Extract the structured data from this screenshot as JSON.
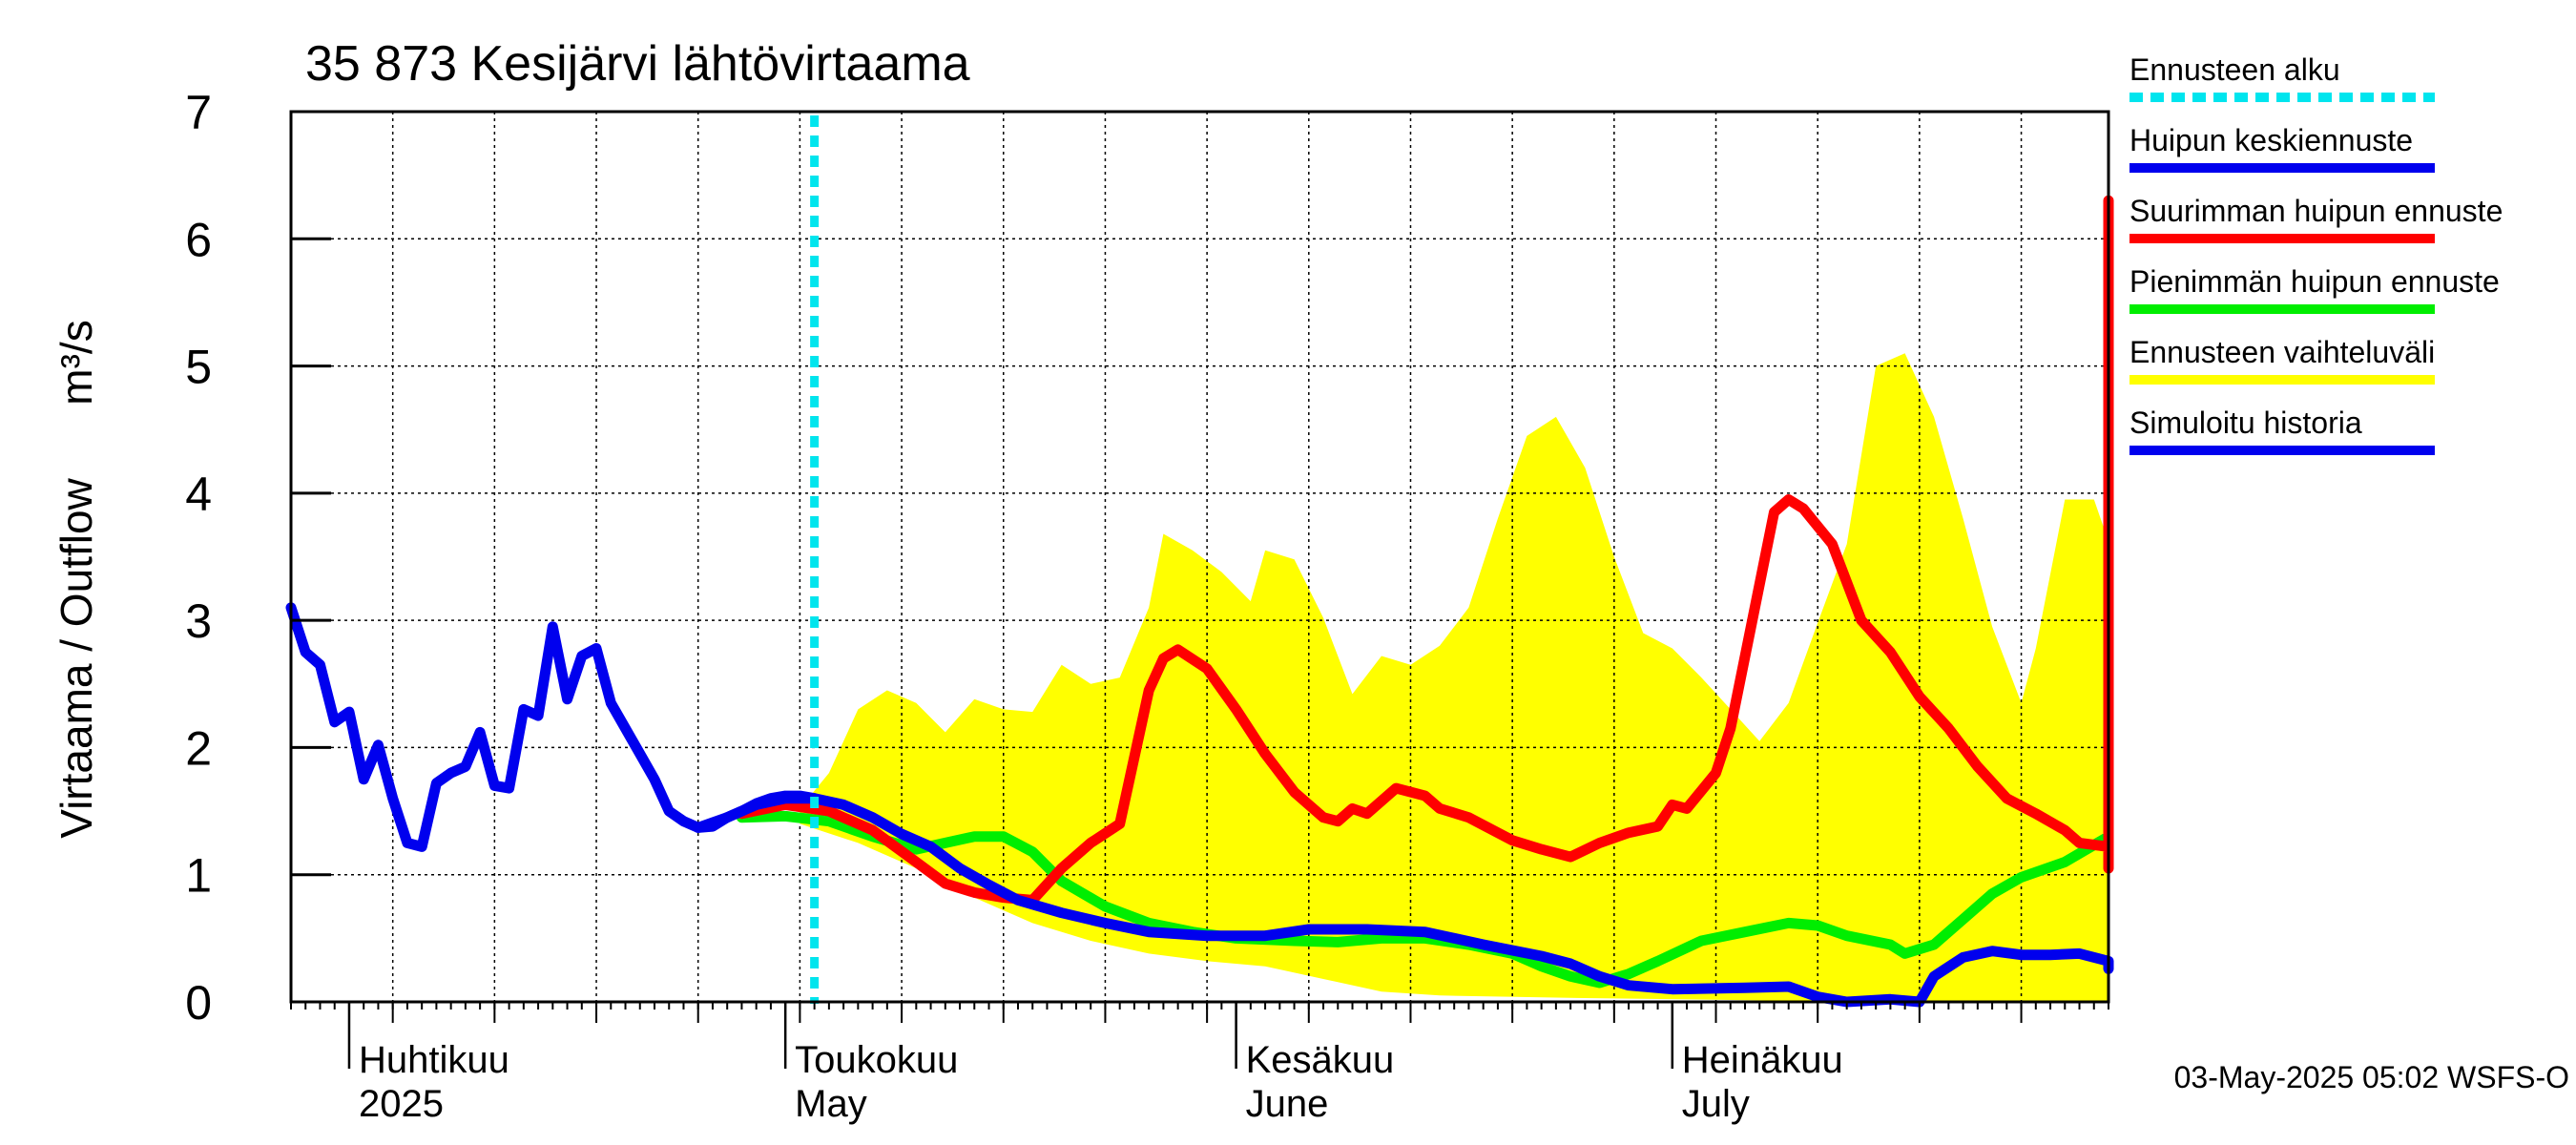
{
  "chart_data": {
    "type": "line",
    "title": "35 873 Kesijärvi lähtövirtaama",
    "ylabel_fi": "Virtaama / Outflow",
    "ylabel_unit": "m³/s",
    "ylim": [
      0,
      7
    ],
    "yticks": [
      "0",
      "1",
      "2",
      "3",
      "4",
      "5",
      "6",
      "7"
    ],
    "xlim": [
      "2025-03-28",
      "2025-07-31"
    ],
    "month_labels": [
      {
        "fi": "Huhtikuu",
        "en": "2025",
        "date": "2025-04-01"
      },
      {
        "fi": "Toukokuu",
        "en": "May",
        "date": "2025-05-01"
      },
      {
        "fi": "Kesäkuu",
        "en": "June",
        "date": "2025-06-01"
      },
      {
        "fi": "Heinäkuu",
        "en": "July",
        "date": "2025-07-01"
      }
    ],
    "forecast_start": "2025-05-03",
    "grid": true,
    "legend_position": "right",
    "legend": [
      {
        "label": "Ennusteen alku",
        "color": "#00e5ee",
        "dashed": true
      },
      {
        "label": "Huipun keskiennuste",
        "color": "#0000ee"
      },
      {
        "label": "Suurimman huipun ennuste",
        "color": "#ff0000"
      },
      {
        "label": "Pienimmän huipun ennuste",
        "color": "#00ee00"
      },
      {
        "label": "Ennusteen vaihteluväli",
        "color": "#ffff00"
      },
      {
        "label": "Simuloitu historia",
        "color": "#0000ee"
      }
    ],
    "footer": "03-May-2025 05:02 WSFS-O",
    "series": [
      {
        "name": "Simuloitu historia",
        "color": "#0000ee",
        "points": [
          [
            "2025-03-28",
            3.1
          ],
          [
            "2025-03-29",
            2.75
          ],
          [
            "2025-03-30",
            2.65
          ],
          [
            "2025-03-31",
            2.2
          ],
          [
            "2025-04-01",
            2.28
          ],
          [
            "2025-04-02",
            1.75
          ],
          [
            "2025-04-03",
            2.02
          ],
          [
            "2025-04-04",
            1.6
          ],
          [
            "2025-04-05",
            1.25
          ],
          [
            "2025-04-06",
            1.22
          ],
          [
            "2025-04-07",
            1.72
          ],
          [
            "2025-04-08",
            1.8
          ],
          [
            "2025-04-09",
            1.85
          ],
          [
            "2025-04-10",
            2.12
          ],
          [
            "2025-04-11",
            1.7
          ],
          [
            "2025-04-12",
            1.68
          ],
          [
            "2025-04-13",
            2.3
          ],
          [
            "2025-04-14",
            2.25
          ],
          [
            "2025-04-15",
            2.95
          ],
          [
            "2025-04-16",
            2.38
          ],
          [
            "2025-04-17",
            2.72
          ],
          [
            "2025-04-18",
            2.78
          ],
          [
            "2025-04-19",
            2.35
          ],
          [
            "2025-04-20",
            2.15
          ],
          [
            "2025-04-21",
            1.95
          ],
          [
            "2025-04-22",
            1.75
          ],
          [
            "2025-04-23",
            1.5
          ],
          [
            "2025-04-24",
            1.42
          ],
          [
            "2025-04-25",
            1.37
          ],
          [
            "2025-04-26",
            1.38
          ],
          [
            "2025-04-27",
            1.45
          ],
          [
            "2025-04-28",
            1.5
          ],
          [
            "2025-04-29",
            1.56
          ],
          [
            "2025-04-30",
            1.6
          ],
          [
            "2025-05-01",
            1.62
          ],
          [
            "2025-05-02",
            1.62
          ],
          [
            "2025-05-03",
            1.6
          ]
        ]
      },
      {
        "name": "Huipun keskiennuste",
        "color": "#0000ee",
        "points": [
          [
            "2025-04-25",
            1.37
          ],
          [
            "2025-04-27",
            1.45
          ],
          [
            "2025-04-29",
            1.55
          ],
          [
            "2025-05-01",
            1.6
          ],
          [
            "2025-05-03",
            1.6
          ],
          [
            "2025-05-05",
            1.55
          ],
          [
            "2025-05-07",
            1.45
          ],
          [
            "2025-05-09",
            1.32
          ],
          [
            "2025-05-11",
            1.22
          ],
          [
            "2025-05-13",
            1.05
          ],
          [
            "2025-05-15",
            0.92
          ],
          [
            "2025-05-17",
            0.8
          ],
          [
            "2025-05-20",
            0.7
          ],
          [
            "2025-05-23",
            0.62
          ],
          [
            "2025-05-26",
            0.55
          ],
          [
            "2025-05-30",
            0.52
          ],
          [
            "2025-06-03",
            0.52
          ],
          [
            "2025-06-06",
            0.57
          ],
          [
            "2025-06-10",
            0.57
          ],
          [
            "2025-06-14",
            0.55
          ],
          [
            "2025-06-18",
            0.45
          ],
          [
            "2025-06-22",
            0.36
          ],
          [
            "2025-06-24",
            0.3
          ],
          [
            "2025-06-26",
            0.2
          ],
          [
            "2025-06-28",
            0.13
          ],
          [
            "2025-07-01",
            0.1
          ],
          [
            "2025-07-06",
            0.11
          ],
          [
            "2025-07-09",
            0.12
          ],
          [
            "2025-07-11",
            0.04
          ],
          [
            "2025-07-13",
            0.0
          ],
          [
            "2025-07-16",
            0.02
          ],
          [
            "2025-07-18",
            0.0
          ],
          [
            "2025-07-19",
            0.2
          ],
          [
            "2025-07-21",
            0.35
          ],
          [
            "2025-07-23",
            0.4
          ],
          [
            "2025-07-25",
            0.37
          ],
          [
            "2025-07-27",
            0.37
          ],
          [
            "2025-07-29",
            0.38
          ],
          [
            "2025-07-31",
            0.32
          ],
          [
            "2025-08-01",
            0.26
          ]
        ]
      },
      {
        "name": "Suurimman huipun ennuste",
        "color": "#ff0000",
        "points": [
          [
            "2025-04-28",
            1.48
          ],
          [
            "2025-05-01",
            1.55
          ],
          [
            "2025-05-04",
            1.5
          ],
          [
            "2025-05-07",
            1.35
          ],
          [
            "2025-05-10",
            1.1
          ],
          [
            "2025-05-12",
            0.93
          ],
          [
            "2025-05-14",
            0.86
          ],
          [
            "2025-05-16",
            0.82
          ],
          [
            "2025-05-18",
            0.8
          ],
          [
            "2025-05-20",
            1.05
          ],
          [
            "2025-05-22",
            1.25
          ],
          [
            "2025-05-24",
            1.4
          ],
          [
            "2025-05-26",
            2.45
          ],
          [
            "2025-05-27",
            2.7
          ],
          [
            "2025-05-28",
            2.77
          ],
          [
            "2025-05-30",
            2.62
          ],
          [
            "2025-06-01",
            2.3
          ],
          [
            "2025-06-03",
            1.95
          ],
          [
            "2025-06-05",
            1.65
          ],
          [
            "2025-06-07",
            1.45
          ],
          [
            "2025-06-08",
            1.42
          ],
          [
            "2025-06-09",
            1.52
          ],
          [
            "2025-06-10",
            1.48
          ],
          [
            "2025-06-12",
            1.68
          ],
          [
            "2025-06-14",
            1.62
          ],
          [
            "2025-06-15",
            1.52
          ],
          [
            "2025-06-17",
            1.45
          ],
          [
            "2025-06-20",
            1.27
          ],
          [
            "2025-06-22",
            1.2
          ],
          [
            "2025-06-24",
            1.14
          ],
          [
            "2025-06-26",
            1.25
          ],
          [
            "2025-06-28",
            1.33
          ],
          [
            "2025-06-30",
            1.38
          ],
          [
            "2025-07-01",
            1.55
          ],
          [
            "2025-07-02",
            1.52
          ],
          [
            "2025-07-04",
            1.8
          ],
          [
            "2025-07-05",
            2.15
          ],
          [
            "2025-07-08",
            3.85
          ],
          [
            "2025-07-09",
            3.95
          ],
          [
            "2025-07-10",
            3.88
          ],
          [
            "2025-07-12",
            3.6
          ],
          [
            "2025-07-14",
            3.0
          ],
          [
            "2025-07-16",
            2.75
          ],
          [
            "2025-07-18",
            2.4
          ],
          [
            "2025-07-20",
            2.15
          ],
          [
            "2025-07-22",
            1.85
          ],
          [
            "2025-07-24",
            1.6
          ],
          [
            "2025-07-26",
            1.48
          ],
          [
            "2025-07-28",
            1.35
          ],
          [
            "2025-07-29",
            1.25
          ],
          [
            "2025-07-31",
            1.22
          ],
          [
            "2025-08-01",
            1.05
          ],
          [
            "2025-08-02",
            1.15
          ],
          [
            "2025-08-03",
            3.0
          ],
          [
            "2025-08-04",
            5.25
          ],
          [
            "2025-08-06",
            6.3
          ]
        ]
      },
      {
        "name": "Pienimmän huipun ennuste",
        "color": "#00ee00",
        "points": [
          [
            "2025-04-28",
            1.45
          ],
          [
            "2025-05-01",
            1.46
          ],
          [
            "2025-05-04",
            1.42
          ],
          [
            "2025-05-07",
            1.3
          ],
          [
            "2025-05-10",
            1.2
          ],
          [
            "2025-05-12",
            1.25
          ],
          [
            "2025-05-14",
            1.3
          ],
          [
            "2025-05-16",
            1.3
          ],
          [
            "2025-05-18",
            1.18
          ],
          [
            "2025-05-20",
            0.95
          ],
          [
            "2025-05-23",
            0.75
          ],
          [
            "2025-05-26",
            0.62
          ],
          [
            "2025-05-29",
            0.55
          ],
          [
            "2025-06-01",
            0.5
          ],
          [
            "2025-06-05",
            0.48
          ],
          [
            "2025-06-08",
            0.47
          ],
          [
            "2025-06-11",
            0.5
          ],
          [
            "2025-06-14",
            0.5
          ],
          [
            "2025-06-17",
            0.45
          ],
          [
            "2025-06-20",
            0.38
          ],
          [
            "2025-06-22",
            0.28
          ],
          [
            "2025-06-24",
            0.2
          ],
          [
            "2025-06-26",
            0.15
          ],
          [
            "2025-06-28",
            0.22
          ],
          [
            "2025-06-30",
            0.32
          ],
          [
            "2025-07-03",
            0.48
          ],
          [
            "2025-07-06",
            0.55
          ],
          [
            "2025-07-09",
            0.62
          ],
          [
            "2025-07-11",
            0.6
          ],
          [
            "2025-07-13",
            0.52
          ],
          [
            "2025-07-16",
            0.45
          ],
          [
            "2025-07-17",
            0.38
          ],
          [
            "2025-07-19",
            0.45
          ],
          [
            "2025-07-21",
            0.65
          ],
          [
            "2025-07-23",
            0.85
          ],
          [
            "2025-07-25",
            0.98
          ],
          [
            "2025-07-28",
            1.1
          ],
          [
            "2025-07-31",
            1.3
          ],
          [
            "2025-08-02",
            1.43
          ],
          [
            "2025-08-04",
            1.38
          ],
          [
            "2025-08-06",
            1.3
          ]
        ]
      }
    ],
    "range_band": {
      "name": "Ennusteen vaihteluväli",
      "color": "#ffff00",
      "upper": [
        [
          "2025-05-02",
          1.52
        ],
        [
          "2025-05-04",
          1.8
        ],
        [
          "2025-05-06",
          2.3
        ],
        [
          "2025-05-08",
          2.45
        ],
        [
          "2025-05-10",
          2.35
        ],
        [
          "2025-05-12",
          2.12
        ],
        [
          "2025-05-14",
          2.38
        ],
        [
          "2025-05-16",
          2.3
        ],
        [
          "2025-05-18",
          2.28
        ],
        [
          "2025-05-20",
          2.65
        ],
        [
          "2025-05-22",
          2.5
        ],
        [
          "2025-05-24",
          2.55
        ],
        [
          "2025-05-26",
          3.1
        ],
        [
          "2025-05-27",
          3.68
        ],
        [
          "2025-05-29",
          3.55
        ],
        [
          "2025-05-31",
          3.38
        ],
        [
          "2025-06-02",
          3.15
        ],
        [
          "2025-06-03",
          3.55
        ],
        [
          "2025-06-05",
          3.48
        ],
        [
          "2025-06-07",
          3.02
        ],
        [
          "2025-06-09",
          2.42
        ],
        [
          "2025-06-11",
          2.72
        ],
        [
          "2025-06-13",
          2.65
        ],
        [
          "2025-06-15",
          2.8
        ],
        [
          "2025-06-17",
          3.1
        ],
        [
          "2025-06-19",
          3.8
        ],
        [
          "2025-06-21",
          4.45
        ],
        [
          "2025-06-23",
          4.6
        ],
        [
          "2025-06-25",
          4.2
        ],
        [
          "2025-06-27",
          3.5
        ],
        [
          "2025-06-29",
          2.9
        ],
        [
          "2025-07-01",
          2.78
        ],
        [
          "2025-07-03",
          2.55
        ],
        [
          "2025-07-05",
          2.3
        ],
        [
          "2025-07-07",
          2.05
        ],
        [
          "2025-07-09",
          2.35
        ],
        [
          "2025-07-11",
          2.98
        ],
        [
          "2025-07-13",
          3.6
        ],
        [
          "2025-07-15",
          5.0
        ],
        [
          "2025-07-17",
          5.1
        ],
        [
          "2025-07-19",
          4.6
        ],
        [
          "2025-07-21",
          3.8
        ],
        [
          "2025-07-23",
          2.95
        ],
        [
          "2025-07-25",
          2.35
        ],
        [
          "2025-07-26",
          2.78
        ],
        [
          "2025-07-28",
          3.95
        ],
        [
          "2025-07-30",
          3.95
        ],
        [
          "2025-08-01",
          3.62
        ],
        [
          "2025-08-02",
          3.5
        ],
        [
          "2025-08-06",
          6.3
        ]
      ],
      "lower": [
        [
          "2025-05-02",
          1.4
        ],
        [
          "2025-05-06",
          1.25
        ],
        [
          "2025-05-10",
          1.05
        ],
        [
          "2025-05-14",
          0.82
        ],
        [
          "2025-05-18",
          0.62
        ],
        [
          "2025-05-22",
          0.48
        ],
        [
          "2025-05-26",
          0.38
        ],
        [
          "2025-05-30",
          0.32
        ],
        [
          "2025-06-03",
          0.28
        ],
        [
          "2025-06-07",
          0.18
        ],
        [
          "2025-06-11",
          0.08
        ],
        [
          "2025-06-15",
          0.05
        ],
        [
          "2025-06-25",
          0.03
        ],
        [
          "2025-07-15",
          0.0
        ],
        [
          "2025-08-06",
          0.0
        ]
      ]
    }
  }
}
